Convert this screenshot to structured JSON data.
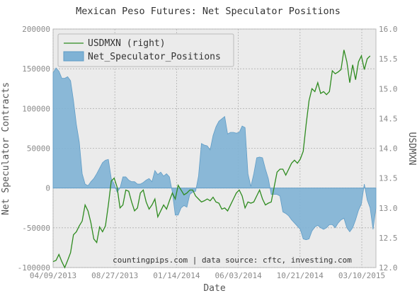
{
  "chart_data": {
    "type": "area",
    "title": "Mexican Peso Futures: Net Speculator Positions",
    "xlabel": "Date",
    "ylabel": "Net Speculator Contracts",
    "ylabel_right": "USDMXN",
    "annotation": "countingpips.com | data source: cftc, investing.com",
    "ylim": [
      -100000,
      200000
    ],
    "ylim_right": [
      12.0,
      16.0
    ],
    "y_ticks": [
      "200000",
      "150000",
      "100000",
      "50000",
      "0",
      "-50000",
      "-100000"
    ],
    "y_ticks_right": [
      "16.0",
      "15.5",
      "15.0",
      "14.5",
      "14.0",
      "13.5",
      "13.0",
      "12.5",
      "12.0"
    ],
    "x_ticks": [
      "04/09/2013",
      "08/27/2013",
      "01/14/2014",
      "06/03/2014",
      "10/21/2014",
      "03/10/2015"
    ],
    "grid": true,
    "legend_position": "top-left",
    "series": [
      {
        "name": "Net_Speculator_Positions",
        "axis": "left",
        "color": "#7fb2d5",
        "values": [
          145000,
          151000,
          147000,
          138000,
          138000,
          140000,
          135000,
          110000,
          80000,
          58000,
          18000,
          5000,
          3000,
          8000,
          12000,
          18000,
          25000,
          32000,
          35000,
          36000,
          12000,
          5000,
          -5000,
          0,
          14000,
          14000,
          10000,
          8000,
          8000,
          5000,
          5000,
          7000,
          10000,
          12000,
          8000,
          22000,
          17000,
          20000,
          15000,
          18000,
          14000,
          -5000,
          -34000,
          -34000,
          -25000,
          -22000,
          -24000,
          -8000,
          -5000,
          -4000,
          15000,
          56000,
          54000,
          53000,
          48000,
          66000,
          77000,
          84000,
          87000,
          90000,
          68000,
          70000,
          70000,
          69000,
          70000,
          78000,
          76000,
          18000,
          2000,
          18000,
          38000,
          39000,
          38000,
          24000,
          12000,
          -8000,
          -8000,
          -8000,
          -10000,
          -30000,
          -32000,
          -35000,
          -40000,
          -44000,
          -48000,
          -52000,
          -64000,
          -65000,
          -64000,
          -54000,
          -49000,
          -47000,
          -50000,
          -52000,
          -50000,
          -46000,
          -46000,
          -50000,
          -44000,
          -40000,
          -38000,
          -50000,
          -55000,
          -50000,
          -40000,
          -28000,
          -20000,
          5000,
          -15000,
          -25000,
          -52000,
          -25000
        ]
      },
      {
        "name": "USDMXN (right)",
        "axis": "right",
        "color": "#2e8b1f",
        "values": [
          12.1,
          12.12,
          12.22,
          12.1,
          12.0,
          12.12,
          12.25,
          12.55,
          12.6,
          12.7,
          12.78,
          13.05,
          12.95,
          12.75,
          12.48,
          12.42,
          12.68,
          12.6,
          12.7,
          13.05,
          13.45,
          13.5,
          13.35,
          13.0,
          13.05,
          13.3,
          13.28,
          13.1,
          12.95,
          13.0,
          13.25,
          13.3,
          13.1,
          12.98,
          13.05,
          13.15,
          12.85,
          12.95,
          13.05,
          12.98,
          13.12,
          13.25,
          13.15,
          13.38,
          13.3,
          13.22,
          13.25,
          13.3,
          13.3,
          13.2,
          13.15,
          13.1,
          13.12,
          13.15,
          13.12,
          13.18,
          13.1,
          13.08,
          12.98,
          13.0,
          12.95,
          13.05,
          13.15,
          13.25,
          13.3,
          13.2,
          13.0,
          13.1,
          13.08,
          13.1,
          13.2,
          13.3,
          13.15,
          13.05,
          13.08,
          13.1,
          13.35,
          13.6,
          13.65,
          13.65,
          13.55,
          13.65,
          13.75,
          13.8,
          13.75,
          13.82,
          13.95,
          14.4,
          14.8,
          15.0,
          14.95,
          15.1,
          14.92,
          14.95,
          14.9,
          14.95,
          15.3,
          15.25,
          15.28,
          15.32,
          15.65,
          15.45,
          15.1,
          15.4,
          15.15,
          15.45,
          15.55,
          15.32,
          15.5,
          15.55
        ]
      }
    ]
  }
}
